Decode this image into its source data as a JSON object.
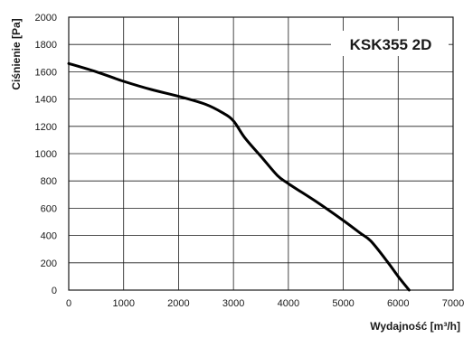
{
  "chart_data": {
    "type": "line",
    "title": "",
    "xlabel": "Wydajność [m³/h]",
    "ylabel": "Ciśnienie [Pa]",
    "xlim": [
      0,
      7000
    ],
    "ylim": [
      0,
      2000
    ],
    "xticks": [
      0,
      1000,
      2000,
      3000,
      4000,
      5000,
      6000,
      7000
    ],
    "yticks": [
      0,
      200,
      400,
      600,
      800,
      1000,
      1200,
      1400,
      1600,
      1800,
      2000
    ],
    "grid": true,
    "annotation": "KSK355 2D",
    "series": [
      {
        "x": [
          0,
          500,
          1000,
          1500,
          2000,
          2500,
          2800,
          3000,
          3200,
          3500,
          3800,
          4000,
          4500,
          5000,
          5300,
          5500,
          5800,
          6000,
          6200
        ],
        "y": [
          1660,
          1600,
          1530,
          1470,
          1420,
          1360,
          1300,
          1240,
          1120,
          980,
          840,
          780,
          650,
          510,
          420,
          360,
          210,
          100,
          0
        ]
      }
    ]
  }
}
